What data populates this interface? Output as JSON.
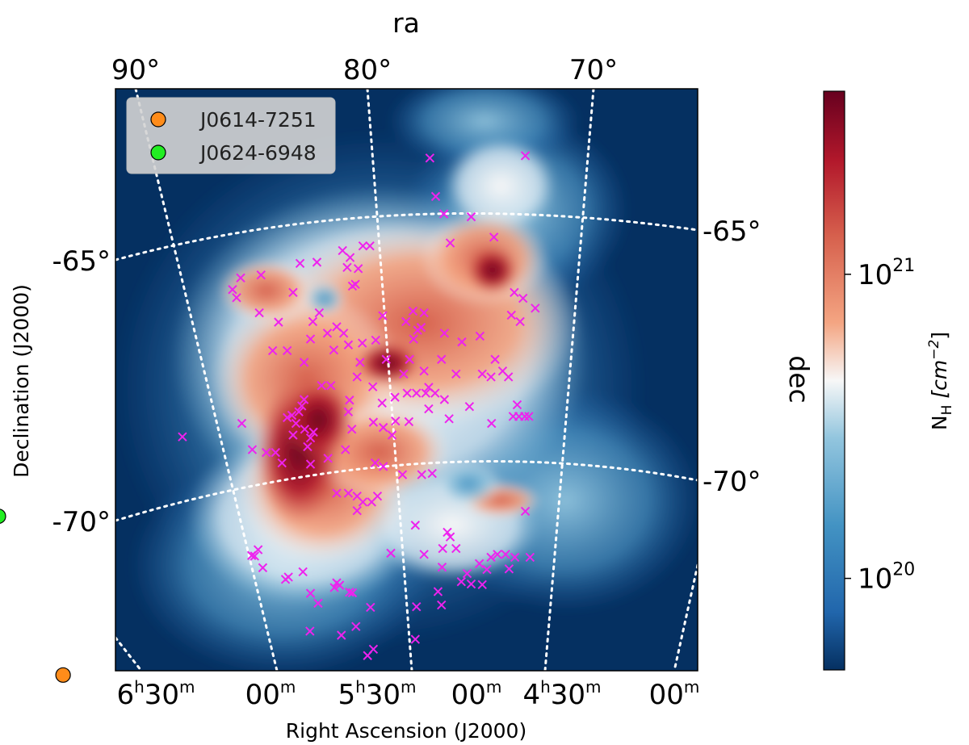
{
  "chart_data": {
    "type": "heatmap",
    "title": "",
    "projection": "sky map of the Large Magellanic Cloud, HI column density",
    "xlabel": "Right Ascension (J2000)",
    "ylabel": "Declination (J2000)",
    "top_axis_label": "ra",
    "right_axis_label": "dec",
    "bottom_ticks": [
      {
        "hours": "6",
        "minutes": "30"
      },
      {
        "hours": "",
        "minutes": "00"
      },
      {
        "hours": "5",
        "minutes": "30"
      },
      {
        "hours": "",
        "minutes": "00"
      },
      {
        "hours": "4",
        "minutes": "30"
      },
      {
        "hours": "",
        "minutes": "00"
      }
    ],
    "top_ticks": [
      "90°",
      "80°",
      "70°"
    ],
    "left_ticks": [
      "-65°",
      "-70°"
    ],
    "right_ticks": [
      "-65°",
      "-70°"
    ],
    "colorbar": {
      "label": "N",
      "label_sub": "H",
      "label_units": "[cm",
      "label_units_exp": "−2",
      "label_units_end": "]",
      "scale": "log",
      "range": [
        5e+19,
        4e+21
      ],
      "ticks": [
        {
          "base": "10",
          "exp": "21",
          "value": 1e+21
        },
        {
          "base": "10",
          "exp": "20",
          "value": 1e+20
        }
      ]
    },
    "legend": {
      "placement": "top-left",
      "entries": [
        {
          "label": "J0614-7251",
          "color": "#ff8c1a",
          "ra_deg": 93.5,
          "dec_deg": -72.85
        },
        {
          "label": "J0624-6948",
          "color": "#22ee22",
          "ra_deg": 96.0,
          "dec_deg": -69.8
        }
      ]
    },
    "crosses": {
      "color": "#ee22ee",
      "unit": "pixel grid 0-100 (fraction of map width / height x 100)",
      "points": [
        [
          54.0,
          11.9
        ],
        [
          70.4,
          11.5
        ],
        [
          55.0,
          18.5
        ],
        [
          56.4,
          21.5
        ],
        [
          61.1,
          22.0
        ],
        [
          65.0,
          25.5
        ],
        [
          57.5,
          26.5
        ],
        [
          42.5,
          27.0
        ],
        [
          43.7,
          27.0
        ],
        [
          39.0,
          27.8
        ],
        [
          40.3,
          29.0
        ],
        [
          34.6,
          29.8
        ],
        [
          31.7,
          30.0
        ],
        [
          39.8,
          30.7
        ],
        [
          41.7,
          30.9
        ],
        [
          41.2,
          33.6
        ],
        [
          40.7,
          33.9
        ],
        [
          21.5,
          32.5
        ],
        [
          25.0,
          32.0
        ],
        [
          20.1,
          34.5
        ],
        [
          30.5,
          35.0
        ],
        [
          68.5,
          35.0
        ],
        [
          70.0,
          36.0
        ],
        [
          35.0,
          38.5
        ],
        [
          24.7,
          38.5
        ],
        [
          51.1,
          38.2
        ],
        [
          68.0,
          38.9
        ],
        [
          20.8,
          35.9
        ],
        [
          33.9,
          40.0
        ],
        [
          45.9,
          39.0
        ],
        [
          53.0,
          38.5
        ],
        [
          38.0,
          40.9
        ],
        [
          49.9,
          40.0
        ],
        [
          51.9,
          41.5
        ],
        [
          28.0,
          40.1
        ],
        [
          52.5,
          41.0
        ],
        [
          69.5,
          40.0
        ],
        [
          72.1,
          37.7
        ],
        [
          36.4,
          42.0
        ],
        [
          39.2,
          42.0
        ],
        [
          40.0,
          44.0
        ],
        [
          56.5,
          42.0
        ],
        [
          51.2,
          43.0
        ],
        [
          62.6,
          42.5
        ],
        [
          59.5,
          43.5
        ],
        [
          42.4,
          43.7
        ],
        [
          44.7,
          43.2
        ],
        [
          29.5,
          45.0
        ],
        [
          33.5,
          43.0
        ],
        [
          27.0,
          45.0
        ],
        [
          32.4,
          47.0
        ],
        [
          37.5,
          44.9
        ],
        [
          42.0,
          47.0
        ],
        [
          46.5,
          46.5
        ],
        [
          56.0,
          46.5
        ],
        [
          50.5,
          46.5
        ],
        [
          65.2,
          46.5
        ],
        [
          53.0,
          48.5
        ],
        [
          41.5,
          49.5
        ],
        [
          49.5,
          49.0
        ],
        [
          58.5,
          49.0
        ],
        [
          63.0,
          49.0
        ],
        [
          64.5,
          49.5
        ],
        [
          66.5,
          48.5
        ],
        [
          67.5,
          49.5
        ],
        [
          35.4,
          51.0
        ],
        [
          37.0,
          51.0
        ],
        [
          44.2,
          51.2
        ],
        [
          54.9,
          52.3
        ],
        [
          53.3,
          52.3
        ],
        [
          53.8,
          51.3
        ],
        [
          50.1,
          52.3
        ],
        [
          51.7,
          52.3
        ],
        [
          56.5,
          53.4
        ],
        [
          48.0,
          53.0
        ],
        [
          40.2,
          53.5
        ],
        [
          40.0,
          55.5
        ],
        [
          45.8,
          54.0
        ],
        [
          53.8,
          55.0
        ],
        [
          60.8,
          54.6
        ],
        [
          69.0,
          54.3
        ],
        [
          68.3,
          56.3
        ],
        [
          71.0,
          56.3
        ],
        [
          70.3,
          56.3
        ],
        [
          69.3,
          56.3
        ],
        [
          57.3,
          56.7
        ],
        [
          64.6,
          57.5
        ],
        [
          48.1,
          57.1
        ],
        [
          50.4,
          57.2
        ],
        [
          44.3,
          57.3
        ],
        [
          46.0,
          58.2
        ],
        [
          40.6,
          58.5
        ],
        [
          47.5,
          59.5
        ],
        [
          21.7,
          57.5
        ],
        [
          11.5,
          59.8
        ],
        [
          34.0,
          59.0
        ],
        [
          32.5,
          58.5
        ],
        [
          33.5,
          60.0
        ],
        [
          33.0,
          61.5
        ],
        [
          31.0,
          57.5
        ],
        [
          30.5,
          59.5
        ],
        [
          31.5,
          55.5
        ],
        [
          32.0,
          54.5
        ],
        [
          32.4,
          53.4
        ],
        [
          30.3,
          56.1
        ],
        [
          29.5,
          56.5
        ],
        [
          23.5,
          62.0
        ],
        [
          25.9,
          62.5
        ],
        [
          27.5,
          62.5
        ],
        [
          28.6,
          64.3
        ],
        [
          33.5,
          64.5
        ],
        [
          36.5,
          63.5
        ],
        [
          39.5,
          62.0
        ],
        [
          44.6,
          64.3
        ],
        [
          46.0,
          64.9
        ],
        [
          49.3,
          66.3
        ],
        [
          52.6,
          66.3
        ],
        [
          54.4,
          66.1
        ],
        [
          38.0,
          69.5
        ],
        [
          41.5,
          70.0
        ],
        [
          45.0,
          70.0
        ],
        [
          44.0,
          71.0
        ],
        [
          42.5,
          71.0
        ],
        [
          40.0,
          69.5
        ],
        [
          41.5,
          72.5
        ],
        [
          51.5,
          75.0
        ],
        [
          53.0,
          80.0
        ],
        [
          47.3,
          79.8
        ],
        [
          70.4,
          72.6
        ],
        [
          57.0,
          76.2
        ],
        [
          57.5,
          77.0
        ],
        [
          58.5,
          79.0
        ],
        [
          60.4,
          83.3
        ],
        [
          63.8,
          82.6
        ],
        [
          64.5,
          80.5
        ],
        [
          65.6,
          80.0
        ],
        [
          67.0,
          80.0
        ],
        [
          71.2,
          80.5
        ],
        [
          68.6,
          80.5
        ],
        [
          56.2,
          79.0
        ],
        [
          56.1,
          82.2
        ],
        [
          62.5,
          81.6
        ],
        [
          67.6,
          82.5
        ],
        [
          37.6,
          85.7
        ],
        [
          38.0,
          84.9
        ],
        [
          38.5,
          85.3
        ],
        [
          40.7,
          86.6
        ],
        [
          40.2,
          86.5
        ],
        [
          43.8,
          89.1
        ],
        [
          34.8,
          88.4
        ],
        [
          33.5,
          86.7
        ],
        [
          29.7,
          83.9
        ],
        [
          32.2,
          83.0
        ],
        [
          23.9,
          80.3
        ],
        [
          24.5,
          79.2
        ],
        [
          23.4,
          80.2
        ],
        [
          25.3,
          82.3
        ],
        [
          29.2,
          84.3
        ],
        [
          33.4,
          93.2
        ],
        [
          38.8,
          93.9
        ],
        [
          41.3,
          92.4
        ],
        [
          51.5,
          94.6
        ],
        [
          44.3,
          96.3
        ],
        [
          43.3,
          97.4
        ],
        [
          51.7,
          89.0
        ],
        [
          56.0,
          88.7
        ],
        [
          55.4,
          86.4
        ],
        [
          59.4,
          84.7
        ],
        [
          61.1,
          85.1
        ],
        [
          63.0,
          85.2
        ]
      ]
    },
    "grid_lines": {
      "style": "dotted",
      "color": "#ffffff"
    }
  }
}
